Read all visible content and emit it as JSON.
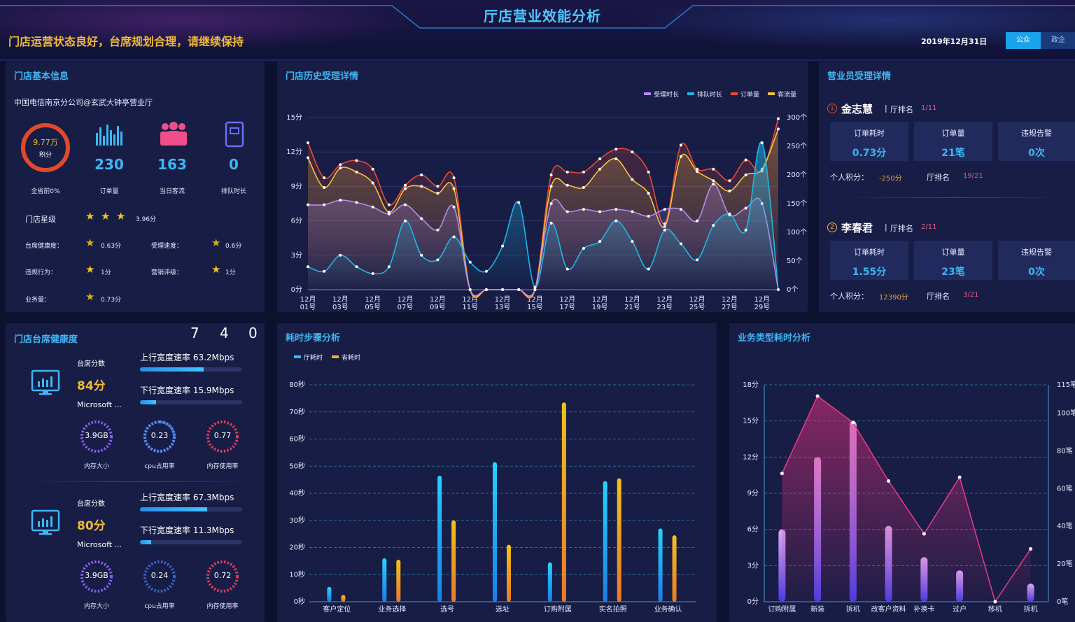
{
  "header": {
    "title": "厅店营业效能分析",
    "marquee": "门店运营状态良好，台席规划合理，请继续保持",
    "date": "2019年12月31日",
    "seg_left": "公众",
    "seg_right": "政企"
  },
  "store_info": {
    "title": "门店基本信息",
    "name": "中国电信南京分公司@玄武大钟亭营业厅",
    "score_value": "9.77万",
    "score_label": "积分",
    "rank_text": "全省前0%",
    "orders": "230",
    "orders_label": "订单量",
    "customers": "163",
    "customers_label": "当日客流",
    "queue": "0",
    "queue_label": "排队时长",
    "star_label": "门店星级",
    "star_value": "3.96分",
    "stars": 3,
    "rows": [
      {
        "label": "台席健康度：",
        "icon": "half-star-icon",
        "value": "0.63分",
        "label2": "受理速度：",
        "icon2": "half-star-icon",
        "value2": "0.6分"
      },
      {
        "label": "违规行为：",
        "icon": "star-icon",
        "value": "1分",
        "label2": "营销评级：",
        "icon2": "star-icon",
        "value2": "1分"
      },
      {
        "label": "业务量：",
        "icon": "half-star-icon",
        "value": "0.73分"
      }
    ],
    "colors": {
      "ring": "#e04a2a",
      "accent": "#3fb6f2",
      "gold": "#f0b93a"
    }
  },
  "history": {
    "title": "门店历史受理详情",
    "legend": [
      "受理时长",
      "排队时长",
      "订单量",
      "客流量"
    ],
    "colors": [
      "#b38cf2",
      "#1fb6e6",
      "#e84a32",
      "#f2c23a"
    ]
  },
  "staff": {
    "title": "营业员受理详情",
    "people": [
      {
        "rank": "1",
        "name": "金志慧",
        "hall_rank_label": "厅排名",
        "hall_rank": "1/11",
        "cards": [
          {
            "label": "订单耗时",
            "value": "0.73分"
          },
          {
            "label": "订单量",
            "value": "21笔"
          },
          {
            "label": "违规告警",
            "value": "0次"
          }
        ],
        "score_label": "个人积分：",
        "score": "-250分",
        "rank2_label": "厅排名",
        "rank2": "19/21"
      },
      {
        "rank": "2",
        "name": "李春君",
        "hall_rank_label": "厅排名",
        "hall_rank": "2/11",
        "cards": [
          {
            "label": "订单耗时",
            "value": "1.55分"
          },
          {
            "label": "订单量",
            "value": "23笔"
          },
          {
            "label": "违规告警",
            "value": "0次"
          }
        ],
        "score_label": "个人积分：",
        "score": "12390分",
        "rank2_label": "厅排名",
        "rank2": "3/21"
      }
    ]
  },
  "health": {
    "title": "门店台席健康度",
    "digits": [
      "7",
      "4",
      "0"
    ],
    "desks": [
      {
        "score_label": "台席分数",
        "score": "84分",
        "os": "Microsoft ...",
        "up": "上行宽度速率 63.2Mbps",
        "down": "下行宽度速率 15.9Mbps",
        "up_pct": 0.62,
        "down_pct": 0.16,
        "mem": "3.9GB",
        "cpu": "0.23",
        "memuse": "0.77",
        "mem_label": "内存大小",
        "cpu_label": "cpu占用率",
        "memuse_label": "内存使用率"
      },
      {
        "score_label": "台席分数",
        "score": "80分",
        "os": "Microsoft ...",
        "up": "上行宽度速率 67.3Mbps",
        "down": "下行宽度速率 11.3Mbps",
        "up_pct": 0.66,
        "down_pct": 0.11,
        "mem": "3.9GB",
        "cpu": "0.24",
        "memuse": "0.72",
        "mem_label": "内存大小",
        "cpu_label": "cpu占用率",
        "memuse_label": "内存使用率"
      }
    ]
  },
  "chart_data": [
    {
      "type": "line",
      "x": [
        "12月01号",
        "12月02号",
        "12月03号",
        "12月04号",
        "12月05号",
        "12月06号",
        "12月07号",
        "12月08号",
        "12月09号",
        "12月10号",
        "12月11号",
        "12月12号",
        "12月13号",
        "12月14号",
        "12月15号",
        "12月16号",
        "12月17号",
        "12月18号",
        "12月19号",
        "12月20号",
        "12月21号",
        "12月22号",
        "12月23号",
        "12月24号",
        "12月25号",
        "12月26号",
        "12月27号",
        "12月28号",
        "12月29号",
        "12月30号"
      ],
      "x_ticks": [
        "12月\n01号",
        "12月\n03号",
        "12月\n05号",
        "12月\n07号",
        "12月\n09号",
        "12月\n11号",
        "12月\n13号",
        "12月\n15号",
        "12月\n17号",
        "12月\n19号",
        "12月\n21号",
        "12月\n23号",
        "12月\n25号",
        "12月\n27号",
        "12月\n29号"
      ],
      "y_left_ticks": [
        "0分",
        "3分",
        "6分",
        "9分",
        "12分",
        "15分"
      ],
      "y_right_ticks": [
        "0个",
        "50个",
        "100个",
        "150个",
        "200个",
        "250个",
        "300个"
      ],
      "ylim_left": [
        0,
        15
      ],
      "ylim_right": [
        0,
        300
      ],
      "series": [
        {
          "name": "受理时长",
          "axis": "left",
          "values": [
            7.4,
            7.4,
            7.8,
            7.6,
            7.2,
            6.6,
            7.4,
            6.2,
            5.2,
            7.2,
            0,
            0,
            0,
            0,
            0,
            7.5,
            6.8,
            7.0,
            6.8,
            7.0,
            6.8,
            6.4,
            7.0,
            7.0,
            6.0,
            9.2,
            6.5,
            7.1,
            7.5,
            0
          ]
        },
        {
          "name": "排队时长",
          "axis": "left",
          "values": [
            2.0,
            1.6,
            3.0,
            2.0,
            1.4,
            2.0,
            6.0,
            3.0,
            2.6,
            4.6,
            2.4,
            1.6,
            3.8,
            7.6,
            0.2,
            5.8,
            1.8,
            3.6,
            4.2,
            6.0,
            4.2,
            1.8,
            5.2,
            4.0,
            2.6,
            5.6,
            6.6,
            5.2,
            12.8,
            0
          ]
        },
        {
          "name": "订单量",
          "axis": "right",
          "values": [
            256,
            195,
            218,
            225,
            210,
            148,
            182,
            200,
            180,
            195,
            0,
            0,
            0,
            0,
            0,
            200,
            205,
            205,
            228,
            245,
            240,
            205,
            115,
            252,
            210,
            210,
            190,
            226,
            207,
            298
          ]
        },
        {
          "name": "客流量",
          "axis": "right",
          "values": [
            230,
            178,
            212,
            205,
            186,
            135,
            176,
            180,
            168,
            176,
            0,
            0,
            0,
            0,
            0,
            180,
            182,
            178,
            210,
            228,
            192,
            168,
            110,
            232,
            206,
            190,
            172,
            200,
            210,
            280
          ]
        }
      ]
    },
    {
      "type": "bar",
      "title": "耗时步骤分析",
      "categories": [
        "客户定位",
        "业务选择",
        "选号",
        "选址",
        "订购附属",
        "实名拍照",
        "业务确认"
      ],
      "ylim": [
        0,
        80
      ],
      "y_ticks": [
        "0秒",
        "10秒",
        "20秒",
        "30秒",
        "40秒",
        "50秒",
        "60秒",
        "70秒",
        "80秒"
      ],
      "series": [
        {
          "name": "厅耗时",
          "values": [
            5.5,
            16,
            46.5,
            51.5,
            14.5,
            44.5,
            27
          ]
        },
        {
          "name": "省耗时",
          "values": [
            2.5,
            15.5,
            30,
            21,
            73.5,
            45.5,
            24.5
          ]
        }
      ]
    },
    {
      "type": "bar",
      "title": "业务类型耗时分析",
      "categories": [
        "订购附属",
        "新装",
        "拆机",
        "改客户资料",
        "补换卡",
        "过户",
        "移机",
        "拆机"
      ],
      "x_labels": [
        "订购附属",
        "新装",
        "拆机",
        "改客户资料",
        "补换卡",
        "过户",
        "移机",
        "拆机"
      ],
      "ylim_left": [
        0,
        18
      ],
      "ylim_right": [
        0,
        115
      ],
      "y_left_ticks": [
        "0分",
        "3分",
        "6分",
        "9分",
        "12分",
        "15分",
        "18分"
      ],
      "y_right_ticks": [
        "0笔",
        "20笔",
        "40笔",
        "60笔",
        "80笔",
        "100笔",
        "115笔"
      ],
      "series": [
        {
          "name": "耗时",
          "axis": "left",
          "values": [
            6,
            12,
            15,
            6.3,
            3.7,
            2.6,
            0,
            1.5
          ]
        },
        {
          "name": "笔数",
          "axis": "right",
          "type": "line",
          "values": [
            68,
            109,
            95,
            64,
            36,
            66,
            0,
            28
          ]
        }
      ]
    }
  ]
}
